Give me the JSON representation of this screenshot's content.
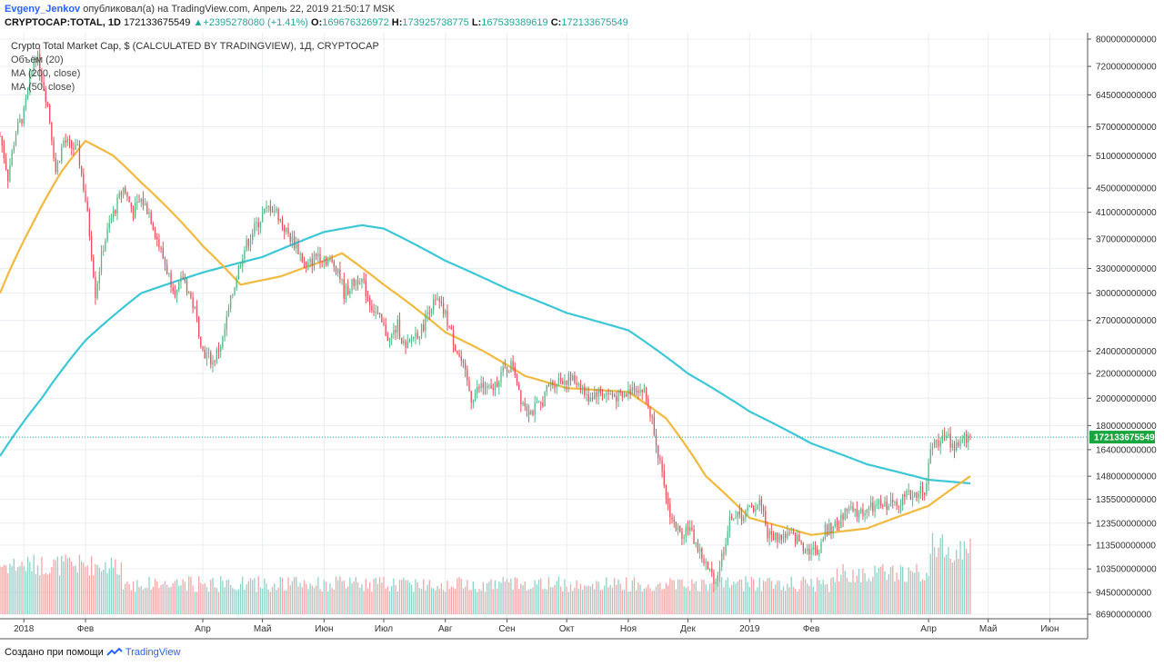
{
  "header": {
    "author": "Evgeny_Jenkov",
    "published_text": "опубликовал(а) на TradingView.com, Апрель 22, 2019 21:50:17 MSK",
    "symbol": "CRYPTOCAP:TOTAL, 1D",
    "last": "172133675549",
    "change_arrow": "▲",
    "change": "+2395278080 (+1.41%)",
    "o_label": "O:",
    "o_value": "169676326972",
    "h_label": "H:",
    "h_value": "173925738775",
    "l_label": "L:",
    "l_value": "167539389619",
    "c_label": "C:",
    "c_value": "172133675549"
  },
  "legend": {
    "title": "Crypto Total Market Cap, $ (CALCULATED BY TRADINGVIEW), 1Д, CRYPTOCAP",
    "volume": "Объём (20)",
    "ma200": "MA (200, close)",
    "ma50": "MA (50, close)"
  },
  "footer": {
    "text": "Создано при помощи",
    "brand": "TradingView"
  },
  "chart_data": {
    "type": "candlestick",
    "y_scale": "log",
    "ylim": [
      86900000000,
      800000000000
    ],
    "y_ticks": [
      {
        "value": 800000000000,
        "label": "800000000000"
      },
      {
        "value": 720000000000,
        "label": "720000000000"
      },
      {
        "value": 645000000000,
        "label": "645000000000"
      },
      {
        "value": 570000000000,
        "label": "570000000000"
      },
      {
        "value": 510000000000,
        "label": "510000000000"
      },
      {
        "value": 450000000000,
        "label": "450000000000"
      },
      {
        "value": 410000000000,
        "label": "410000000000"
      },
      {
        "value": 370000000000,
        "label": "370000000000"
      },
      {
        "value": 330000000000,
        "label": "330000000000"
      },
      {
        "value": 300000000000,
        "label": "300000000000"
      },
      {
        "value": 270000000000,
        "label": "270000000000"
      },
      {
        "value": 240000000000,
        "label": "240000000000"
      },
      {
        "value": 220000000000,
        "label": "220000000000"
      },
      {
        "value": 200000000000,
        "label": "200000000000"
      },
      {
        "value": 180000000000,
        "label": "180000000000"
      },
      {
        "value": 164000000000,
        "label": "164000000000"
      },
      {
        "value": 148000000000,
        "label": "148000000000"
      },
      {
        "value": 135500000000,
        "label": "135500000000"
      },
      {
        "value": 123500000000,
        "label": "123500000000"
      },
      {
        "value": 113500000000,
        "label": "113500000000"
      },
      {
        "value": 103500000000,
        "label": "103500000000"
      },
      {
        "value": 94500000000,
        "label": "94500000000"
      },
      {
        "value": 86900000000,
        "label": "86900000000"
      }
    ],
    "x_ticks": [
      {
        "date": "2018-01-01",
        "label": "2018"
      },
      {
        "date": "2018-02-01",
        "label": "Фев"
      },
      {
        "date": "2018-04-01",
        "label": "Апр"
      },
      {
        "date": "2018-05-01",
        "label": "Май"
      },
      {
        "date": "2018-06-01",
        "label": "Июн"
      },
      {
        "date": "2018-07-01",
        "label": "Июл"
      },
      {
        "date": "2018-08-01",
        "label": "Авг"
      },
      {
        "date": "2018-09-01",
        "label": "Сен"
      },
      {
        "date": "2018-10-01",
        "label": "Окт"
      },
      {
        "date": "2018-11-01",
        "label": "Ноя"
      },
      {
        "date": "2018-12-01",
        "label": "Дек"
      },
      {
        "date": "2019-01-01",
        "label": "2019"
      },
      {
        "date": "2019-02-01",
        "label": "Фев"
      },
      {
        "date": "2019-04-01",
        "label": "Апр"
      },
      {
        "date": "2019-05-01",
        "label": "Май"
      },
      {
        "date": "2019-06-01",
        "label": "Июн"
      }
    ],
    "x_range": [
      "2017-12-20",
      "2019-06-20"
    ],
    "price_keypoints": [
      [
        "2017-12-20",
        550
      ],
      [
        "2017-12-24",
        470
      ],
      [
        "2017-12-28",
        560
      ],
      [
        "2018-01-01",
        600
      ],
      [
        "2018-01-04",
        680
      ],
      [
        "2018-01-07",
        760
      ],
      [
        "2018-01-10",
        690
      ],
      [
        "2018-01-13",
        620
      ],
      [
        "2018-01-17",
        480
      ],
      [
        "2018-01-21",
        540
      ],
      [
        "2018-01-24",
        530
      ],
      [
        "2018-01-28",
        520
      ],
      [
        "2018-02-01",
        430
      ],
      [
        "2018-02-06",
        300
      ],
      [
        "2018-02-10",
        360
      ],
      [
        "2018-02-14",
        400
      ],
      [
        "2018-02-20",
        450
      ],
      [
        "2018-02-25",
        410
      ],
      [
        "2018-03-01",
        430
      ],
      [
        "2018-03-05",
        410
      ],
      [
        "2018-03-10",
        360
      ],
      [
        "2018-03-15",
        320
      ],
      [
        "2018-03-19",
        300
      ],
      [
        "2018-03-22",
        320
      ],
      [
        "2018-03-28",
        280
      ],
      [
        "2018-04-01",
        240
      ],
      [
        "2018-04-06",
        230
      ],
      [
        "2018-04-11",
        250
      ],
      [
        "2018-04-16",
        300
      ],
      [
        "2018-04-21",
        350
      ],
      [
        "2018-04-26",
        380
      ],
      [
        "2018-05-01",
        405
      ],
      [
        "2018-05-05",
        420
      ],
      [
        "2018-05-08",
        410
      ],
      [
        "2018-05-13",
        380
      ],
      [
        "2018-05-18",
        360
      ],
      [
        "2018-05-23",
        330
      ],
      [
        "2018-05-29",
        350
      ],
      [
        "2018-06-03",
        340
      ],
      [
        "2018-06-08",
        330
      ],
      [
        "2018-06-11",
        300
      ],
      [
        "2018-06-15",
        310
      ],
      [
        "2018-06-19",
        320
      ],
      [
        "2018-06-24",
        290
      ],
      [
        "2018-06-29",
        270
      ],
      [
        "2018-07-04",
        250
      ],
      [
        "2018-07-08",
        265
      ],
      [
        "2018-07-12",
        240
      ],
      [
        "2018-07-16",
        255
      ],
      [
        "2018-07-20",
        260
      ],
      [
        "2018-07-24",
        285
      ],
      [
        "2018-07-28",
        290
      ],
      [
        "2018-08-01",
        275
      ],
      [
        "2018-08-05",
        250
      ],
      [
        "2018-08-09",
        230
      ],
      [
        "2018-08-14",
        200
      ],
      [
        "2018-08-19",
        210
      ],
      [
        "2018-08-24",
        205
      ],
      [
        "2018-08-29",
        220
      ],
      [
        "2018-09-04",
        228
      ],
      [
        "2018-09-08",
        200
      ],
      [
        "2018-09-13",
        190
      ],
      [
        "2018-09-18",
        195
      ],
      [
        "2018-09-22",
        210
      ],
      [
        "2018-09-27",
        215
      ],
      [
        "2018-10-03",
        215
      ],
      [
        "2018-10-08",
        212
      ],
      [
        "2018-10-11",
        200
      ],
      [
        "2018-10-16",
        205
      ],
      [
        "2018-10-22",
        203
      ],
      [
        "2018-10-29",
        200
      ],
      [
        "2018-11-04",
        210
      ],
      [
        "2018-11-09",
        205
      ],
      [
        "2018-11-14",
        178
      ],
      [
        "2018-11-19",
        140
      ],
      [
        "2018-11-23",
        125
      ],
      [
        "2018-11-27",
        118
      ],
      [
        "2018-12-01",
        122
      ],
      [
        "2018-12-06",
        112
      ],
      [
        "2018-12-11",
        103
      ],
      [
        "2018-12-15",
        99
      ],
      [
        "2018-12-19",
        112
      ],
      [
        "2018-12-23",
        128
      ],
      [
        "2018-12-27",
        126
      ],
      [
        "2019-01-01",
        130
      ],
      [
        "2019-01-07",
        134
      ],
      [
        "2019-01-10",
        118
      ],
      [
        "2019-01-15",
        117
      ],
      [
        "2019-01-20",
        118
      ],
      [
        "2019-01-25",
        116
      ],
      [
        "2019-01-30",
        112
      ],
      [
        "2019-02-04",
        110
      ],
      [
        "2019-02-08",
        120
      ],
      [
        "2019-02-14",
        122
      ],
      [
        "2019-02-19",
        130
      ],
      [
        "2019-02-24",
        128
      ],
      [
        "2019-03-01",
        130
      ],
      [
        "2019-03-07",
        132
      ],
      [
        "2019-03-13",
        133
      ],
      [
        "2019-03-19",
        136
      ],
      [
        "2019-03-24",
        138
      ],
      [
        "2019-03-31",
        142
      ],
      [
        "2019-04-02",
        165
      ],
      [
        "2019-04-06",
        170
      ],
      [
        "2019-04-10",
        172
      ],
      [
        "2019-04-14",
        166
      ],
      [
        "2019-04-18",
        170
      ],
      [
        "2019-04-22",
        172.13
      ]
    ],
    "ma200_keypoints": [
      [
        "2017-12-20",
        160
      ],
      [
        "2018-01-10",
        200
      ],
      [
        "2018-02-01",
        250
      ],
      [
        "2018-03-01",
        300
      ],
      [
        "2018-04-01",
        325
      ],
      [
        "2018-05-01",
        345
      ],
      [
        "2018-06-01",
        380
      ],
      [
        "2018-06-20",
        390
      ],
      [
        "2018-07-01",
        385
      ],
      [
        "2018-08-01",
        340
      ],
      [
        "2018-09-01",
        305
      ],
      [
        "2018-10-01",
        278
      ],
      [
        "2018-11-01",
        260
      ],
      [
        "2018-12-01",
        220
      ],
      [
        "2019-01-01",
        190
      ],
      [
        "2019-02-01",
        168
      ],
      [
        "2019-03-01",
        155
      ],
      [
        "2019-04-01",
        146
      ],
      [
        "2019-04-22",
        144
      ]
    ],
    "ma50_keypoints": [
      [
        "2017-12-20",
        300
      ],
      [
        "2018-01-05",
        390
      ],
      [
        "2018-01-20",
        480
      ],
      [
        "2018-02-01",
        540
      ],
      [
        "2018-02-15",
        510
      ],
      [
        "2018-03-01",
        460
      ],
      [
        "2018-04-01",
        360
      ],
      [
        "2018-04-20",
        310
      ],
      [
        "2018-05-10",
        320
      ],
      [
        "2018-06-01",
        340
      ],
      [
        "2018-06-10",
        350
      ],
      [
        "2018-07-01",
        310
      ],
      [
        "2018-08-01",
        258
      ],
      [
        "2018-08-20",
        240
      ],
      [
        "2018-09-10",
        218
      ],
      [
        "2018-10-01",
        208
      ],
      [
        "2018-11-01",
        205
      ],
      [
        "2018-11-20",
        185
      ],
      [
        "2018-12-10",
        148
      ],
      [
        "2019-01-01",
        126
      ],
      [
        "2019-02-01",
        118
      ],
      [
        "2019-03-01",
        121
      ],
      [
        "2019-04-01",
        132
      ],
      [
        "2019-04-22",
        148
      ]
    ],
    "last_price": {
      "value": 172133675549,
      "label": "172133675549"
    },
    "colors": {
      "up": "#53b987",
      "down": "#eb4d5c",
      "vol_up": "#8fd3c8",
      "vol_down": "#f2a7a9",
      "ma200": "#3cc7d7",
      "ma50": "#f1b93f",
      "last_line": "#26a69a",
      "last_label_bg": "#17a63d",
      "grid": "#e9eef2"
    }
  }
}
